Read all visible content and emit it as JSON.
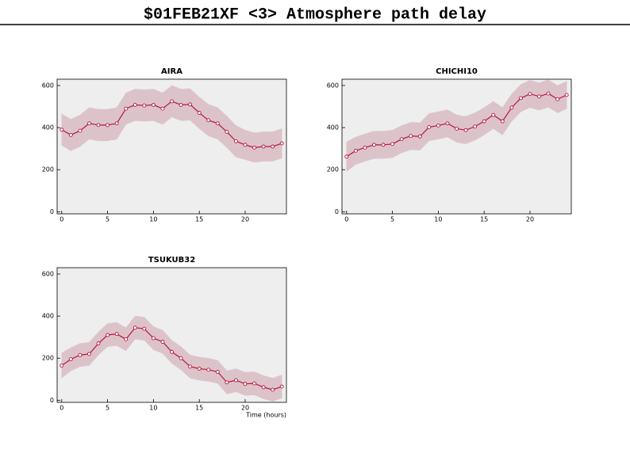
{
  "title": "$01FEB21XF <3>  Atmosphere path delay",
  "chart_data": [
    {
      "type": "line",
      "title": "AIRA",
      "color": "#b5173f",
      "band_color": "#dcc3ca",
      "x": [
        0,
        1,
        2,
        3,
        4,
        5,
        6,
        7,
        8,
        9,
        10,
        11,
        12,
        13,
        14,
        15,
        16,
        17,
        18,
        19,
        20,
        21,
        22,
        23,
        24
      ],
      "values": [
        390,
        365,
        385,
        420,
        412,
        412,
        420,
        490,
        508,
        505,
        508,
        490,
        525,
        508,
        510,
        470,
        435,
        420,
        380,
        335,
        318,
        305,
        310,
        310,
        325
      ],
      "errors": [
        75,
        75,
        75,
        75,
        75,
        75,
        75,
        75,
        75,
        75,
        75,
        75,
        75,
        75,
        75,
        75,
        75,
        75,
        75,
        75,
        70,
        70,
        70,
        70,
        70
      ],
      "xlim": [
        -0.5,
        24.5
      ],
      "xticks": [
        0,
        5,
        10,
        15,
        20
      ],
      "ylim": [
        -10,
        630
      ],
      "yticks": [
        0,
        200,
        400,
        600
      ]
    },
    {
      "type": "line",
      "title": "CHICHI10",
      "color": "#b5173f",
      "band_color": "#dcc3ca",
      "x": [
        0,
        1,
        2,
        3,
        4,
        5,
        6,
        7,
        8,
        9,
        10,
        11,
        12,
        13,
        14,
        15,
        16,
        17,
        18,
        19,
        20,
        21,
        22,
        23,
        24
      ],
      "values": [
        262,
        290,
        305,
        318,
        318,
        322,
        345,
        360,
        358,
        402,
        410,
        420,
        395,
        388,
        405,
        430,
        460,
        430,
        495,
        540,
        560,
        548,
        562,
        535,
        555
      ],
      "errors": [
        70,
        65,
        65,
        65,
        65,
        65,
        65,
        65,
        65,
        65,
        65,
        65,
        65,
        65,
        65,
        65,
        65,
        65,
        65,
        65,
        65,
        65,
        65,
        65,
        65
      ],
      "xlim": [
        -0.5,
        24.5
      ],
      "xticks": [
        0,
        5,
        10,
        15,
        20
      ],
      "ylim": [
        -10,
        630
      ],
      "yticks": [
        0,
        200,
        400,
        600
      ]
    },
    {
      "type": "line",
      "title": "TSUKUB32",
      "xlabel": "Time (hours)",
      "color": "#b5173f",
      "band_color": "#dcc3ca",
      "x": [
        0,
        1,
        2,
        3,
        4,
        5,
        6,
        7,
        8,
        9,
        10,
        11,
        12,
        13,
        14,
        15,
        16,
        17,
        18,
        19,
        20,
        21,
        22,
        23,
        24
      ],
      "values": [
        165,
        195,
        215,
        220,
        270,
        310,
        315,
        290,
        345,
        340,
        295,
        278,
        230,
        200,
        160,
        150,
        145,
        135,
        85,
        95,
        78,
        80,
        62,
        50,
        65
      ],
      "errors": [
        60,
        55,
        55,
        55,
        55,
        55,
        55,
        55,
        55,
        55,
        55,
        55,
        55,
        55,
        55,
        55,
        55,
        55,
        55,
        55,
        55,
        55,
        55,
        55,
        55
      ],
      "xlim": [
        -0.5,
        24.5
      ],
      "xticks": [
        0,
        5,
        10,
        15,
        20
      ],
      "ylim": [
        -10,
        630
      ],
      "yticks": [
        0,
        200,
        400,
        600
      ]
    }
  ]
}
